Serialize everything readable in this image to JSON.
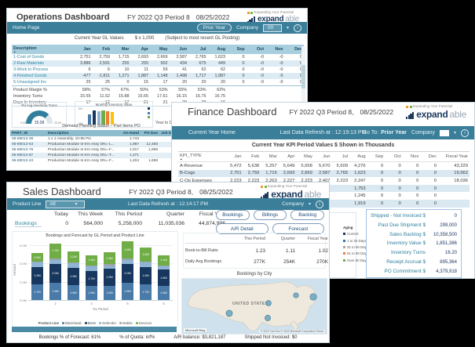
{
  "icons": {
    "chevron_down": "▾",
    "info": "i",
    "sort_asc": "▲"
  },
  "colors": {
    "teal_bar": "#3a7e99",
    "brand_navy": "#1e3a5f",
    "brand_orange": "#f0992e",
    "brand_green": "#7ab648",
    "kpi_label_teal": "#2e7f9e",
    "kpi_value_navy": "#1f3864"
  },
  "logo": {
    "tagline": "Expanding Your Potential",
    "brand_bold": "expand",
    "brand_light": "able"
  },
  "operations": {
    "title": "Operations Dashboard",
    "period": "FY 2022 Q3 Period 8",
    "date": "08/25/2022",
    "nav": {
      "home": "Home Page",
      "prior_year": "Prior Year",
      "company_label": "Company",
      "company_value": "00"
    },
    "subtitle": {
      "left": "Current Year GL Values",
      "mid": "$ x 1,000",
      "right": "(Subject to most recent GL Posting)"
    },
    "gl_table": {
      "columns": [
        "Description",
        "Jan",
        "Feb",
        "Mar",
        "Apr",
        "May",
        "Jun",
        "Jul",
        "Aug",
        "Sep",
        "Oct",
        "Nov",
        "Dec"
      ],
      "rows": [
        {
          "label": "1-Cost of Goods",
          "values": [
            "2,751",
            "2,759",
            "1,715",
            "2,693",
            "2,669",
            "2,587",
            "2,765",
            "1,623",
            "0",
            "-0",
            "-0",
            "0"
          ]
        },
        {
          "label": "2-Raw Materials",
          "values": [
            "3,886",
            "2,591",
            "255",
            "255",
            "502",
            "434",
            "675",
            "449",
            "0",
            "-0",
            "-0",
            "0"
          ]
        },
        {
          "label": "3-Work In Process",
          "values": [
            "6",
            "6",
            "10",
            "11",
            "59",
            "41",
            "62",
            "62",
            "0",
            "-0",
            "-0",
            "0"
          ]
        },
        {
          "label": "4-Finished Goods",
          "values": [
            "-477",
            "-1,811",
            "1,271",
            "1,887",
            "1,148",
            "1,498",
            "1,717",
            "1,987",
            "0",
            "-0",
            "-0",
            "0"
          ]
        },
        {
          "label": "5-Unassigned Inv",
          "values": [
            "25",
            "25",
            "0",
            "15",
            "17",
            "20",
            "20",
            "20",
            "0",
            "-0",
            "-0",
            "0"
          ]
        }
      ],
      "metric_rows": [
        {
          "label": "Product Margin %",
          "values": [
            "58%",
            "57%",
            "67%",
            "50%",
            "53%",
            "55%",
            "53%",
            "62%",
            "",
            "",
            "",
            ""
          ]
        },
        {
          "label": "Inventory Turns",
          "values": [
            "15.55",
            "11.52",
            "15.88",
            "15.65",
            "17.61",
            "16.15",
            "16.75",
            "16.75",
            "",
            "",
            "",
            ""
          ]
        },
        {
          "label": "Days In Inventory",
          "values": [
            "17",
            "12",
            "17",
            "21",
            "21",
            "20",
            "20",
            "16",
            "",
            "",
            "",
            ""
          ]
        }
      ]
    },
    "gauge": {
      "title": "Pd Avg Inventory Turns",
      "value": "15.08",
      "min": "0.00",
      "max": "20.00"
    },
    "inv_chart": {
      "title": "Monthly Inventory Value",
      "ytop": "5M",
      "ybottom": "0M"
    },
    "ytd_label": "Year to Date Value",
    "demand": {
      "title": "Demand Planning Status – Part Items PO",
      "columns": [
        "PART_ID",
        "Description",
        "On Hand",
        "PO Due",
        "Job Due"
      ],
      "rows": [
        {
          "id": "06-88013-38",
          "desc": "1 x 1 Assembly, 10-95 Pin",
          "on_hand": "1,743",
          "po_due": "",
          "job_due": ""
        },
        {
          "id": "06-88012-63",
          "desc": "Production Module In-trm Assy DN=-L...",
          "on_hand": "1,987",
          "po_due": "12,455",
          "job_due": ""
        },
        {
          "id": "06-88012-78",
          "desc": "Production Module In-trm Assy DN=-F...",
          "on_hand": "1,917",
          "po_due": "1,958",
          "job_due": ""
        },
        {
          "id": "06-88012-87",
          "desc": "Production Module In-trm Assy DN=-T...",
          "on_hand": "1,371",
          "po_due": "",
          "job_due": ""
        },
        {
          "id": "06-88012-43",
          "desc": "Production Module In-trm Assy DN=-F...",
          "on_hand": "1,204",
          "po_due": "1,858",
          "job_due": ""
        }
      ]
    }
  },
  "finance": {
    "title": "Finance Dashboard",
    "period": "FY 2022 Q3 Period 8,",
    "date": "08/25/2022",
    "nav": {
      "home": "Current Year Home",
      "refresh": "Last Data Refresh at : 12:19:13 PM",
      "goto_label": "Go To:",
      "goto_value": "Prior Year",
      "company_label": "Company"
    },
    "subtitle": "Current Year KPI Period Values $ Shown in Thousands",
    "kpi_table": {
      "columns": [
        "KPI_TYPE",
        "Jan",
        "Feb",
        "Mar",
        "Apr",
        "May",
        "Jun",
        "Jul",
        "Aug",
        "Sep",
        "Oct",
        "Nov",
        "Dec",
        "Fiscal Year"
      ],
      "rows": [
        {
          "label": "A-Revenue",
          "values": [
            "5,472",
            "5,638",
            "5,257",
            "5,649",
            "5,658",
            "5,670",
            "5,609",
            "4,276",
            "0",
            "0",
            "0",
            "0",
            "43,229"
          ]
        },
        {
          "label": "B-Cogs",
          "values": [
            "2,751",
            "2,759",
            "1,715",
            "2,693",
            "2,669",
            "2,587",
            "2,765",
            "1,623",
            "0",
            "0",
            "0",
            "0",
            "19,562"
          ]
        },
        {
          "label": "C-Op Expenses",
          "values": [
            "2,223",
            "2,223",
            "2,263",
            "2,227",
            "2,223",
            "2,407",
            "2,223",
            "2,247",
            "0",
            "0",
            "0",
            "0",
            "18,036"
          ]
        },
        {
          "label": "",
          "values": [
            "",
            "",
            "",
            "",
            "",
            "",
            "",
            "1,753",
            "0",
            "0",
            "0",
            "0",
            ""
          ]
        },
        {
          "label": "",
          "values": [
            "",
            "",
            "",
            "",
            "",
            "",
            "",
            "1,245",
            "0",
            "0",
            "0",
            "0",
            ""
          ]
        },
        {
          "label": "",
          "values": [
            "",
            "",
            "",
            "",
            "",
            "",
            "",
            "1,919",
            "0",
            "0",
            "0",
            "0",
            ""
          ]
        }
      ]
    },
    "aging": {
      "title": "Aging",
      "items": [
        {
          "label": "Current",
          "color": "#17375e"
        },
        {
          "label": "1 to 30 Days",
          "color": "#2e75b6"
        },
        {
          "label": "31 to 60 Days",
          "color": "#a6a6a6"
        },
        {
          "label": "61 to 90 Days",
          "color": "#ed7d31"
        },
        {
          "label": "Over 90 Days",
          "color": "#70ad47"
        }
      ]
    },
    "kpis": [
      {
        "label": "Shipped - Not Invoiced $",
        "value": "0"
      },
      {
        "label": "Past Due Shipment $",
        "value": "299,000"
      },
      {
        "label": "Sales Backlog $",
        "value": "10,358,500"
      },
      {
        "label": "Inventory Value $",
        "value": "1,851,386"
      },
      {
        "label": "Inventory Turns",
        "value": "16.20"
      },
      {
        "label": "Receipt Accrual $",
        "value": "895,364"
      },
      {
        "label": "PO Commitment $",
        "value": "4,379,918"
      }
    ]
  },
  "sales": {
    "title": "Sales Dashboard",
    "period": "FY 2022 Q3 Period 8,",
    "date": "08/25/2022",
    "nav": {
      "product_line_label": "Product Line",
      "product_line_value": "All",
      "refresh": "Last Data Refresh at : 12:14:17 PM",
      "company_label": "Company"
    },
    "summary": {
      "metric_label": "Bookings",
      "columns": [
        "Today",
        "This Week",
        "This Period",
        "Quarter",
        "Fiscal Year"
      ],
      "values": [
        "0",
        "564,000",
        "5,258,000",
        "11,035,036",
        "44,874,996"
      ]
    },
    "buttons_row1": [
      "Bookings",
      "Billings",
      "Backlog"
    ],
    "buttons_row2": [
      "A/R Detail",
      "Forecast"
    ],
    "ratio_table": {
      "headers": [
        "This Period",
        "Quarter",
        "Fiscal Year"
      ],
      "rows": [
        {
          "label": "Book-to-Bill Ratio",
          "values": [
            "1.23",
            "1.11",
            "1.02"
          ]
        },
        {
          "label": "Daily Avg Bookings",
          "values": [
            "277K",
            "254K",
            "270K"
          ]
        }
      ]
    },
    "map": {
      "title": "Bookings by City",
      "label": "UNITED STATES",
      "bing": "Microsoft Bing",
      "attribution": "© 2022 TomTom © 2022 Microsoft Corporation  Terms"
    },
    "stats": [
      "Bookings % of Forecast: 61%",
      "% of Quota: inf%",
      "A/R balance: $3,821,187",
      "Shipped Not Invoiced: $0"
    ]
  },
  "chart_data": [
    {
      "id": "bookings-forecast-by-gl-period",
      "type": "bar",
      "stacked": true,
      "title": "Bookings and Forecast by GL Period and Product Line",
      "xlabel": "GL Period",
      "ylabel": "Amount",
      "x": [
        1,
        2,
        3,
        4,
        5,
        6,
        7,
        8
      ],
      "xticks_shown": [
        "2",
        "4",
        "6",
        "8"
      ],
      "yticks": [
        "0.0M",
        "2.0M",
        "4.0M",
        "6.0M"
      ],
      "ytick_values": [
        0,
        2,
        4,
        6
      ],
      "ylim": [
        0,
        6.5
      ],
      "legend_title": "Product Line",
      "legend_position": "bottom",
      "series": [
        {
          "name": "Blackhawk",
          "color": "#4a7aa8",
          "values": [
            1.7,
            1.9,
            1.6,
            1.5,
            1.5,
            1.9,
            1.7,
            1.5
          ]
        },
        {
          "name": "Blank",
          "color": "#17375e",
          "values": [
            1.9,
            2.0,
            1.9,
            1.7,
            1.9,
            2.0,
            1.9,
            1.8
          ]
        },
        {
          "name": "Defender",
          "color": "#8fb4d4",
          "values": [
            0.5,
            0.5,
            0.5,
            0.5,
            0.3,
            0.5,
            0.5,
            0.4
          ]
        },
        {
          "name": "Mobile",
          "color": "#9aa5ad",
          "values": [
            0.1,
            0.1,
            0.1,
            0.1,
            0.2,
            0.1,
            0.1,
            0.1
          ]
        },
        {
          "name": "Services",
          "color": "#70ad47",
          "values": [
            0.9,
            1.7,
            1.2,
            1.1,
            1.3,
            1.9,
            1.5,
            1.1
          ]
        }
      ]
    },
    {
      "id": "monthly-inventory-value",
      "type": "bar",
      "title": "Monthly Inventory Value",
      "values": [
        3.2,
        4.3,
        4.0,
        4.4,
        4.1,
        3.8
      ],
      "colors": [
        "#4a7aa8",
        "#17375e",
        "#8fb4d4",
        "#70ad47",
        "#ed7d31",
        "#ffc000"
      ],
      "ylim": [
        0,
        5
      ]
    },
    {
      "id": "pd-avg-inventory-turns",
      "type": "gauge",
      "title": "Pd Avg Inventory Turns",
      "value": 15.08,
      "min": 0,
      "max": 20
    }
  ]
}
